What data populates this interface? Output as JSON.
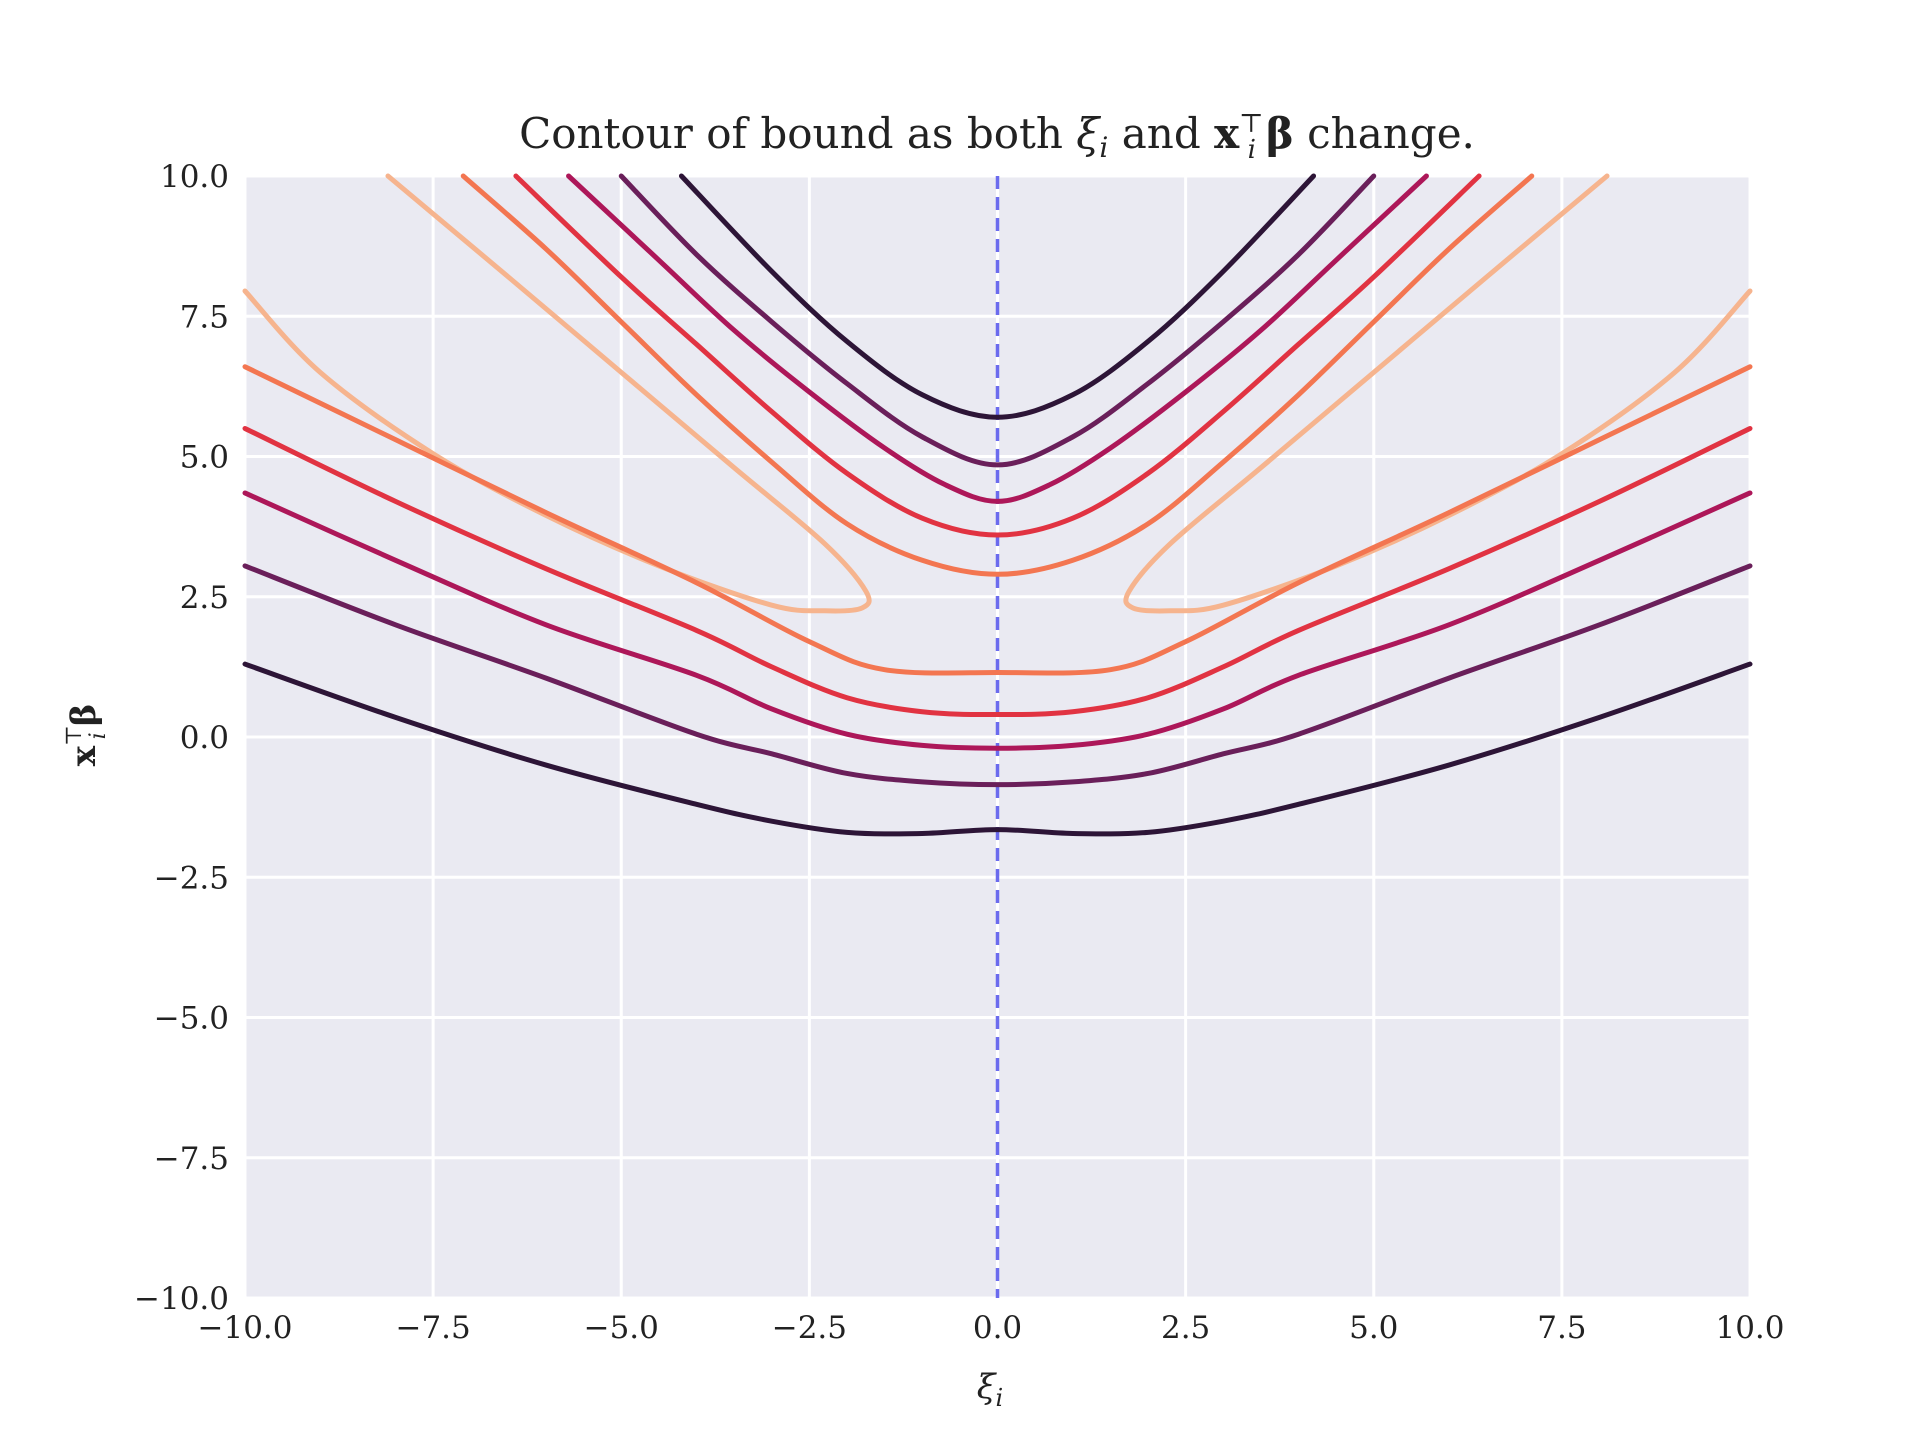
{
  "chart_data": {
    "type": "line",
    "title": {
      "prefix": "Contour of bound as both ",
      "xi_symbol": "ξ",
      "xi_subscript": "i",
      "connector": " and ",
      "x_symbol": "x",
      "x_superscript": "⊤",
      "x_subscript": "i",
      "beta_symbol": "β",
      "suffix": " change."
    },
    "xlabel": {
      "symbol": "ξ",
      "subscript": "i"
    },
    "ylabel": {
      "symbol": "x",
      "superscript": "⊤",
      "subscript": "i",
      "beta": "β"
    },
    "xlim": [
      -10,
      10
    ],
    "ylim": [
      -10,
      10
    ],
    "xticks": [
      -10,
      -7.5,
      -5,
      -2.5,
      0,
      2.5,
      5,
      7.5,
      10
    ],
    "yticks": [
      -10,
      -7.5,
      -5,
      -2.5,
      0,
      2.5,
      5,
      7.5,
      10
    ],
    "xtick_labels": [
      "−10.0",
      "−7.5",
      "−5.0",
      "−2.5",
      "0.0",
      "2.5",
      "5.0",
      "7.5",
      "10.0"
    ],
    "ytick_labels": [
      "−10.0",
      "−7.5",
      "−5.0",
      "−2.5",
      "0.0",
      "2.5",
      "5.0",
      "7.5",
      "10.0"
    ],
    "grid": true,
    "background": "#eaeaf2",
    "grid_color": "#ffffff",
    "vertical_reference_line": {
      "x": 0,
      "style": "dashed",
      "color": "#6b6bee"
    },
    "series": [
      {
        "color": "#2d1537",
        "points": [
          [
            -4.2,
            10
          ],
          [
            -3,
            8.3
          ],
          [
            -2,
            7.05
          ],
          [
            -1,
            6.1
          ],
          [
            0,
            5.7
          ],
          [
            1,
            6.1
          ],
          [
            2,
            7.05
          ],
          [
            3,
            8.3
          ],
          [
            4.2,
            10
          ]
        ]
      },
      {
        "color": "#6a1f5a",
        "points": [
          [
            -5,
            10
          ],
          [
            -4,
            8.6
          ],
          [
            -3,
            7.4
          ],
          [
            -2,
            6.3
          ],
          [
            -1,
            5.35
          ],
          [
            0,
            4.85
          ],
          [
            1,
            5.35
          ],
          [
            2,
            6.3
          ],
          [
            3,
            7.4
          ],
          [
            4,
            8.6
          ],
          [
            5,
            10
          ]
        ]
      },
      {
        "color": "#ad1759",
        "points": [
          [
            -5.7,
            10
          ],
          [
            -4.5,
            8.5
          ],
          [
            -3.5,
            7.25
          ],
          [
            -2.5,
            6.15
          ],
          [
            -1.5,
            5.15
          ],
          [
            -0.7,
            4.5
          ],
          [
            0,
            4.2
          ],
          [
            0.7,
            4.5
          ],
          [
            1.5,
            5.15
          ],
          [
            2.5,
            6.15
          ],
          [
            3.5,
            7.25
          ],
          [
            4.5,
            8.5
          ],
          [
            5.7,
            10
          ]
        ]
      },
      {
        "color": "#e13342",
        "points": [
          [
            -6.4,
            10
          ],
          [
            -5,
            8.2
          ],
          [
            -4,
            7
          ],
          [
            -3,
            5.8
          ],
          [
            -2,
            4.7
          ],
          [
            -1,
            3.9
          ],
          [
            0,
            3.6
          ],
          [
            1,
            3.9
          ],
          [
            2,
            4.7
          ],
          [
            3,
            5.8
          ],
          [
            4,
            7
          ],
          [
            5,
            8.2
          ],
          [
            6.4,
            10
          ]
        ]
      },
      {
        "color": "#f37651",
        "points": [
          [
            -7.1,
            10
          ],
          [
            -6,
            8.7
          ],
          [
            -5,
            7.4
          ],
          [
            -4,
            6.1
          ],
          [
            -3,
            4.9
          ],
          [
            -2,
            3.8
          ],
          [
            -1,
            3.15
          ],
          [
            0,
            2.9
          ],
          [
            1,
            3.15
          ],
          [
            2,
            3.8
          ],
          [
            3,
            4.9
          ],
          [
            4,
            6.1
          ],
          [
            5,
            7.4
          ],
          [
            6,
            8.7
          ],
          [
            7.1,
            10
          ]
        ]
      },
      {
        "color": "#f6b48e",
        "points": [
          [
            -8.1,
            10
          ],
          [
            -6.5,
            8.2
          ],
          [
            -5,
            6.5
          ],
          [
            -3.5,
            4.8
          ],
          [
            -2.3,
            3.45
          ],
          [
            -1.75,
            2.6
          ],
          [
            -1.8,
            2.3
          ],
          [
            -2.3,
            2.25
          ],
          [
            -3,
            2.35
          ],
          [
            -4.5,
            3.05
          ],
          [
            -6,
            3.95
          ],
          [
            -7.5,
            5.05
          ],
          [
            -9,
            6.5
          ],
          [
            -10,
            7.95
          ]
        ]
      },
      {
        "color": "#f6b48e",
        "points": [
          [
            8.1,
            10
          ],
          [
            6.5,
            8.2
          ],
          [
            5,
            6.5
          ],
          [
            3.5,
            4.8
          ],
          [
            2.3,
            3.45
          ],
          [
            1.75,
            2.6
          ],
          [
            1.8,
            2.3
          ],
          [
            2.3,
            2.25
          ],
          [
            3,
            2.35
          ],
          [
            4.5,
            3.05
          ],
          [
            6,
            3.95
          ],
          [
            7.5,
            5.05
          ],
          [
            9,
            6.5
          ],
          [
            10,
            7.95
          ]
        ]
      },
      {
        "color": "#f37651",
        "points": [
          [
            -10,
            6.6
          ],
          [
            -8,
            5.3
          ],
          [
            -6,
            4
          ],
          [
            -4,
            2.75
          ],
          [
            -2.5,
            1.7
          ],
          [
            -1.5,
            1.2
          ],
          [
            0,
            1.15
          ],
          [
            1.5,
            1.2
          ],
          [
            2.5,
            1.7
          ],
          [
            4,
            2.75
          ],
          [
            6,
            4
          ],
          [
            8,
            5.3
          ],
          [
            10,
            6.6
          ]
        ]
      },
      {
        "color": "#e13342",
        "points": [
          [
            -10,
            5.5
          ],
          [
            -8,
            4.2
          ],
          [
            -6,
            3
          ],
          [
            -4,
            1.9
          ],
          [
            -3,
            1.25
          ],
          [
            -2,
            0.7
          ],
          [
            -1,
            0.45
          ],
          [
            0,
            0.4
          ],
          [
            1,
            0.45
          ],
          [
            2,
            0.7
          ],
          [
            3,
            1.25
          ],
          [
            4,
            1.9
          ],
          [
            6,
            3
          ],
          [
            8,
            4.2
          ],
          [
            10,
            5.5
          ]
        ]
      },
      {
        "color": "#ad1759",
        "points": [
          [
            -10,
            4.35
          ],
          [
            -8,
            3.15
          ],
          [
            -6,
            2
          ],
          [
            -4,
            1.1
          ],
          [
            -3,
            0.5
          ],
          [
            -2,
            0.05
          ],
          [
            -1,
            -0.15
          ],
          [
            0,
            -0.2
          ],
          [
            1,
            -0.15
          ],
          [
            2,
            0.05
          ],
          [
            3,
            0.5
          ],
          [
            4,
            1.1
          ],
          [
            6,
            2
          ],
          [
            8,
            3.15
          ],
          [
            10,
            4.35
          ]
        ]
      },
      {
        "color": "#6a1f5a",
        "points": [
          [
            -10,
            3.05
          ],
          [
            -8,
            2
          ],
          [
            -6,
            1.05
          ],
          [
            -4,
            0.05
          ],
          [
            -3,
            -0.3
          ],
          [
            -2,
            -0.65
          ],
          [
            -1,
            -0.8
          ],
          [
            0,
            -0.85
          ],
          [
            1,
            -0.8
          ],
          [
            2,
            -0.65
          ],
          [
            3,
            -0.3
          ],
          [
            4,
            0.05
          ],
          [
            6,
            1.05
          ],
          [
            8,
            2
          ],
          [
            10,
            3.05
          ]
        ]
      },
      {
        "color": "#2d1537",
        "points": [
          [
            -10,
            1.3
          ],
          [
            -8,
            0.35
          ],
          [
            -6,
            -0.5
          ],
          [
            -4,
            -1.2
          ],
          [
            -3,
            -1.5
          ],
          [
            -2,
            -1.7
          ],
          [
            -1,
            -1.72
          ],
          [
            0,
            -1.65
          ],
          [
            1,
            -1.72
          ],
          [
            2,
            -1.7
          ],
          [
            3,
            -1.5
          ],
          [
            4,
            -1.2
          ],
          [
            6,
            -0.5
          ],
          [
            8,
            0.35
          ],
          [
            10,
            1.3
          ]
        ]
      }
    ]
  }
}
